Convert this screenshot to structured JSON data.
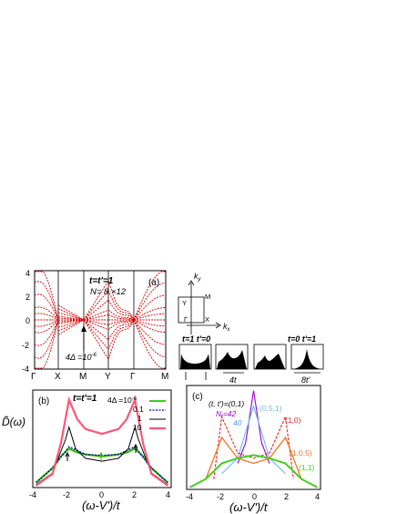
{
  "panel_a": {
    "label": "(a)",
    "params": "t=t'=1",
    "size": "N= 8 ×12",
    "delta": "4Δ =10",
    "delta_exp": "-6",
    "yticks": [
      "4",
      "2",
      "0",
      "-2",
      "-4"
    ],
    "xticks": [
      "Γ",
      "X",
      "M",
      "Y",
      "Γ",
      "M"
    ],
    "colors": {
      "bands": "#dd0000",
      "axes": "#000000"
    }
  },
  "bz": {
    "ky": "k",
    "ky_sub": "y",
    "kx": "k",
    "kx_sub": "x",
    "pt_Y": "Y",
    "pt_M": "M",
    "pt_G": "Γ",
    "pt_X": "X"
  },
  "dos_icons": {
    "left_params": "t=1  t'=0",
    "right_params": "t=0  t'=1",
    "width_4t": "4t",
    "width_8t": "8t'"
  },
  "panel_b": {
    "label": "(b)",
    "params": "t=t'=1",
    "ylabel": "D̃(ω)",
    "xlabel": "(ω-V')/t",
    "xticks": [
      "-4",
      "-2",
      "0",
      "2",
      "4"
    ],
    "legend_title": "4Δ =10",
    "legend_title_exp": "-6",
    "legend": [
      "0.1",
      "1",
      "10"
    ],
    "colors": {
      "first": "#33bb00",
      "second": "#0000cc",
      "third": "#000000",
      "fourth": "#ff5577"
    }
  },
  "panel_c": {
    "label": "(c)",
    "xlabel": "(ω-V')/t",
    "xticks": [
      "-4",
      "-2",
      "0",
      "2",
      "4"
    ],
    "params_label": "(t, t')=(0,1)",
    "n42": "N",
    "n42_sub": "t",
    "n42_val": "=42",
    "n40": "40",
    "series_labels": [
      "(0.5,1)",
      "(1,0)",
      "(1,0.5)",
      "(1,1)"
    ],
    "colors": {
      "c01": "#9900cc",
      "c01b": "#5599ff",
      "c051": "#66bbee",
      "c10": "#ee2222",
      "c105": "#ee7722",
      "c11": "#44cc22",
      "extra": "#2233cc"
    }
  },
  "chart_data": [
    {
      "type": "line",
      "title": "(a)",
      "xlabel": "",
      "ylabel": "",
      "categories": [
        "Γ",
        "X",
        "M",
        "Y",
        "Γ",
        "M"
      ],
      "ylim": [
        -4,
        4
      ],
      "series": [
        {
          "values": [
            4,
            3.2,
            0,
            3.2,
            0,
            4
          ]
        },
        {
          "values": [
            2,
            1.5,
            0,
            1.5,
            0,
            2
          ]
        },
        {
          "values": [
            0,
            0,
            0,
            0,
            0,
            0
          ]
        },
        {
          "values": [
            -2,
            -1.5,
            0,
            -1.5,
            0,
            -2
          ]
        },
        {
          "values": [
            -4,
            -3.2,
            0,
            -3.2,
            0,
            -4
          ]
        }
      ]
    },
    {
      "type": "line",
      "title": "(b)",
      "xlabel": "(ω-V')/t",
      "ylabel": "D̃(ω)",
      "xlim": [
        -4.2,
        4.2
      ],
      "series": [
        {
          "name": "4Δ =10-6",
          "x": [
            -4,
            -3,
            -2.5,
            -2,
            -1.5,
            -1,
            0,
            1,
            1.5,
            2,
            2.5,
            3,
            4
          ],
          "y": [
            0.05,
            0.2,
            0.32,
            0.4,
            0.36,
            0.34,
            0.32,
            0.34,
            0.36,
            0.4,
            0.32,
            0.2,
            0.05
          ]
        },
        {
          "name": "0.1",
          "x": [
            -4,
            -3,
            -2,
            -1,
            0,
            1,
            2,
            3,
            4
          ],
          "y": [
            0.05,
            0.2,
            0.42,
            0.34,
            0.33,
            0.34,
            0.42,
            0.2,
            0.05
          ]
        },
        {
          "name": "1",
          "x": [
            -4,
            -3,
            -2.2,
            -2,
            -1.6,
            -1,
            0,
            1,
            1.6,
            2,
            2.2,
            3,
            4
          ],
          "y": [
            0.03,
            0.15,
            0.5,
            0.62,
            0.4,
            0.3,
            0.27,
            0.3,
            0.4,
            0.62,
            0.5,
            0.15,
            0.03
          ]
        },
        {
          "name": "10",
          "x": [
            -4,
            -3,
            -2.5,
            -2,
            -1.5,
            -1,
            0,
            1,
            1.5,
            2,
            2.5,
            3,
            4
          ],
          "y": [
            0.02,
            0.14,
            0.45,
            0.9,
            0.7,
            0.6,
            0.55,
            0.6,
            0.7,
            0.9,
            0.45,
            0.14,
            0.02
          ]
        }
      ]
    },
    {
      "type": "line",
      "title": "(c)",
      "xlabel": "(ω-V')/t",
      "ylabel": "",
      "xlim": [
        -4.2,
        4.2
      ],
      "series": [
        {
          "name": "(t, t')=(0,1)",
          "x": [
            -1,
            -0.5,
            0,
            0.5,
            1
          ],
          "y": [
            0.25,
            0.45,
            0.95,
            0.45,
            0.25
          ]
        },
        {
          "name": "(0.5,1)",
          "x": [
            -2,
            -1,
            0,
            1,
            2
          ],
          "y": [
            0.15,
            0.3,
            0.8,
            0.3,
            0.15
          ]
        },
        {
          "name": "(1,0)",
          "x": [
            -2.5,
            -2,
            -1,
            0,
            1,
            2,
            2.5
          ],
          "y": [
            0.1,
            0.7,
            0.35,
            0.3,
            0.35,
            0.7,
            0.1
          ]
        },
        {
          "name": "(1,0.5)",
          "x": [
            -3,
            -2,
            -1,
            0,
            1,
            2,
            3
          ],
          "y": [
            0.1,
            0.5,
            0.3,
            0.25,
            0.3,
            0.5,
            0.1
          ]
        },
        {
          "name": "(1,1)",
          "x": [
            -4,
            -3,
            -2,
            -1,
            0,
            1,
            2,
            3,
            4
          ],
          "y": [
            0.02,
            0.1,
            0.25,
            0.3,
            0.33,
            0.3,
            0.25,
            0.1,
            0.02
          ]
        }
      ]
    }
  ]
}
